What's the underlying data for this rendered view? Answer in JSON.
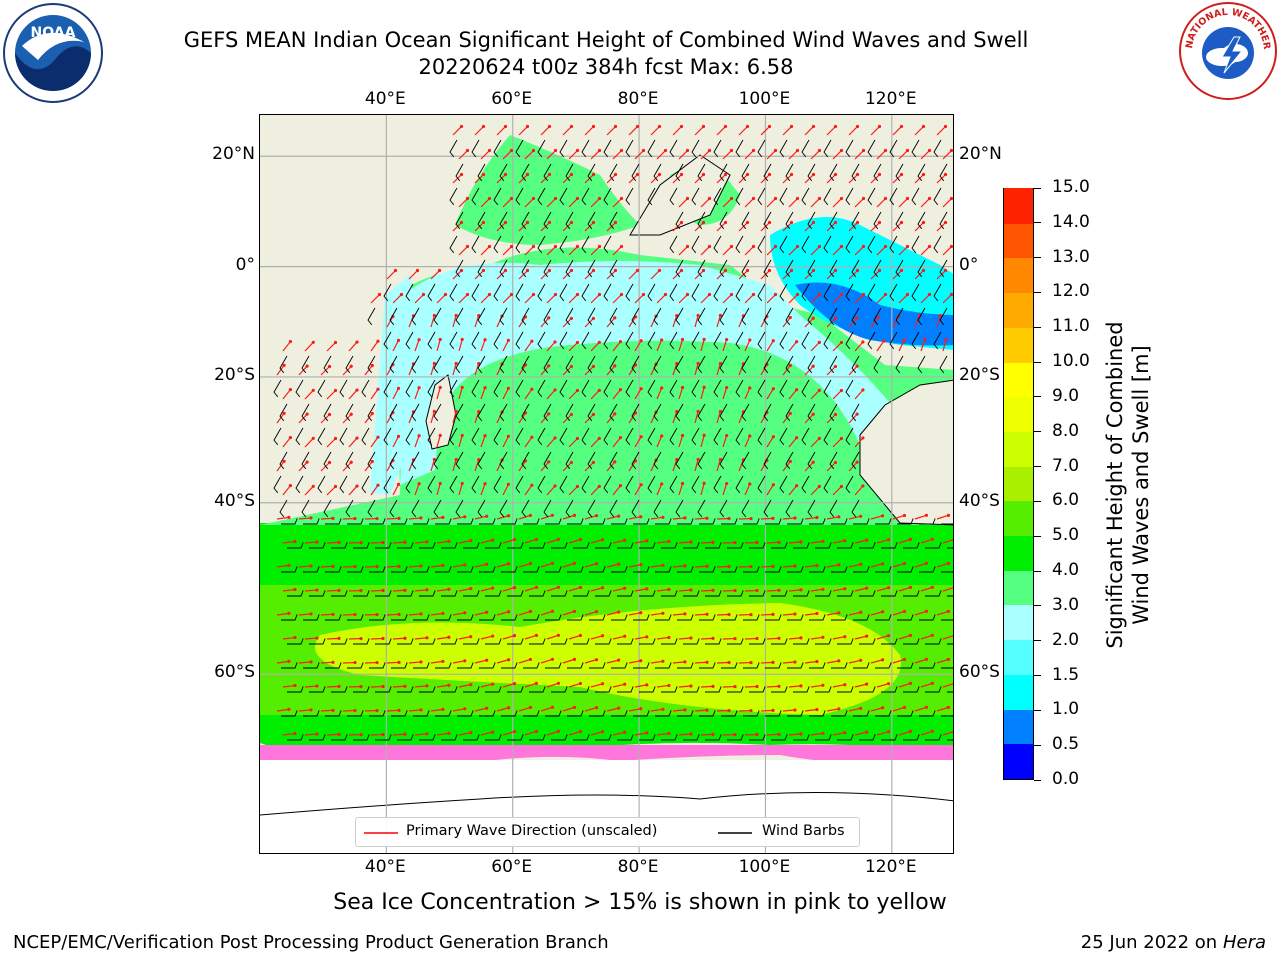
{
  "title": {
    "line1": "GEFS MEAN Indian Ocean Significant Height of Combined Wind Waves and Swell",
    "line2": "20220624 t00z 384h fcst   Max: 6.58"
  },
  "logos": {
    "left": "NOAA",
    "right": "NATIONAL WEATHER SERVICE"
  },
  "map": {
    "lon_labels": [
      "40°E",
      "60°E",
      "80°E",
      "100°E",
      "120°E"
    ],
    "lat_labels": [
      "20°N",
      "0°",
      "20°S",
      "40°S",
      "60°S"
    ],
    "lon_range": [
      20,
      130
    ],
    "lat_range": [
      -73,
      27
    ],
    "gridlines": true,
    "land_color": "#efefe0",
    "ice_color": "#ffffff",
    "legend": {
      "wave": "Primary Wave Direction (unscaled)",
      "wind": "Wind Barbs"
    }
  },
  "colorbar": {
    "title_line1": "Significant Height of Combined",
    "title_line2": "Wind Waves and Swell [m]",
    "ticks": [
      "0.0",
      "0.5",
      "1.0",
      "1.5",
      "2.0",
      "3.0",
      "4.0",
      "5.0",
      "6.0",
      "7.0",
      "8.0",
      "9.0",
      "10.0",
      "11.0",
      "12.0",
      "13.0",
      "14.0",
      "15.0"
    ],
    "colors": [
      "#0000ff",
      "#0080ff",
      "#00ffff",
      "#55ffff",
      "#aaffff",
      "#55ff7f",
      "#00ee00",
      "#55ee00",
      "#aaee00",
      "#ccff00",
      "#eeff00",
      "#ffff00",
      "#ffcc00",
      "#ffaa00",
      "#ff8800",
      "#ff5500",
      "#ff2200"
    ]
  },
  "note": "Sea Ice Concentration > 15% is shown in pink to yellow",
  "footer": {
    "left": "NCEP/EMC/Verification Post Processing Product Generation Branch",
    "right_date": "25 Jun 2022 on",
    "right_machine": "Hera"
  }
}
